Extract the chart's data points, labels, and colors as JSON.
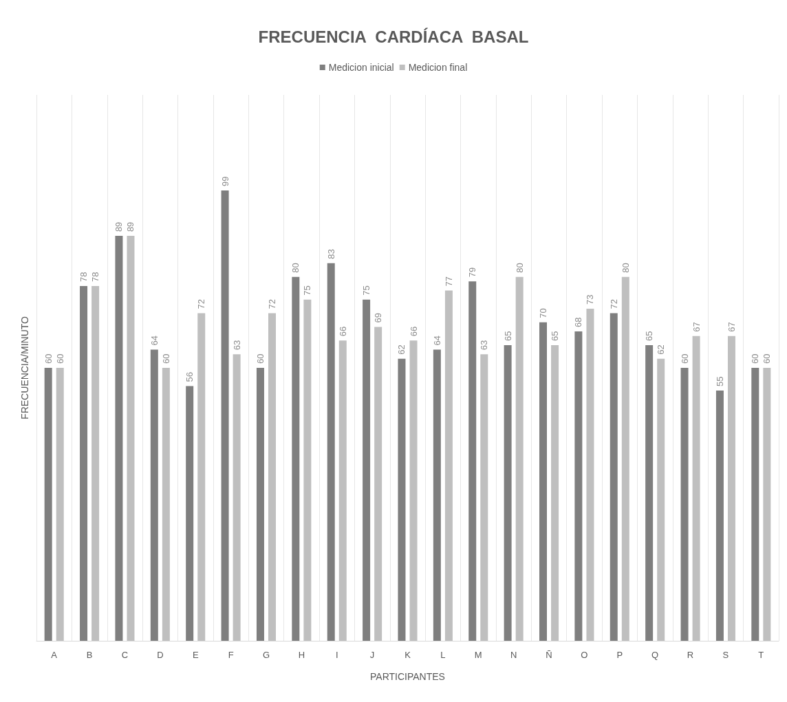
{
  "chart_data": {
    "type": "bar",
    "title": "FRECUENCIA  CARDÍACA  BASAL",
    "xlabel": "PARTICIPANTES",
    "ylabel": "FRECUENCIA/MINUTO",
    "categories": [
      "A",
      "B",
      "C",
      "D",
      "E",
      "F",
      "G",
      "H",
      "I",
      "J",
      "K",
      "L",
      "M",
      "N",
      "Ñ",
      "O",
      "P",
      "Q",
      "R",
      "S",
      "T"
    ],
    "series": [
      {
        "name": "Medicion inicial",
        "color": "#7f7f7f",
        "values": [
          60,
          78,
          89,
          64,
          56,
          99,
          60,
          80,
          83,
          75,
          62,
          64,
          79,
          65,
          70,
          68,
          72,
          65,
          60,
          55,
          60
        ]
      },
      {
        "name": "Medicion final",
        "color": "#bfbfbf",
        "values": [
          60,
          78,
          89,
          60,
          72,
          63,
          72,
          75,
          66,
          69,
          66,
          77,
          63,
          80,
          65,
          73,
          80,
          62,
          67,
          67,
          60
        ]
      }
    ],
    "ylim": [
      0,
      120
    ],
    "data_labels": true,
    "grid": "x",
    "legend": "top",
    "tick_labels": "x"
  }
}
